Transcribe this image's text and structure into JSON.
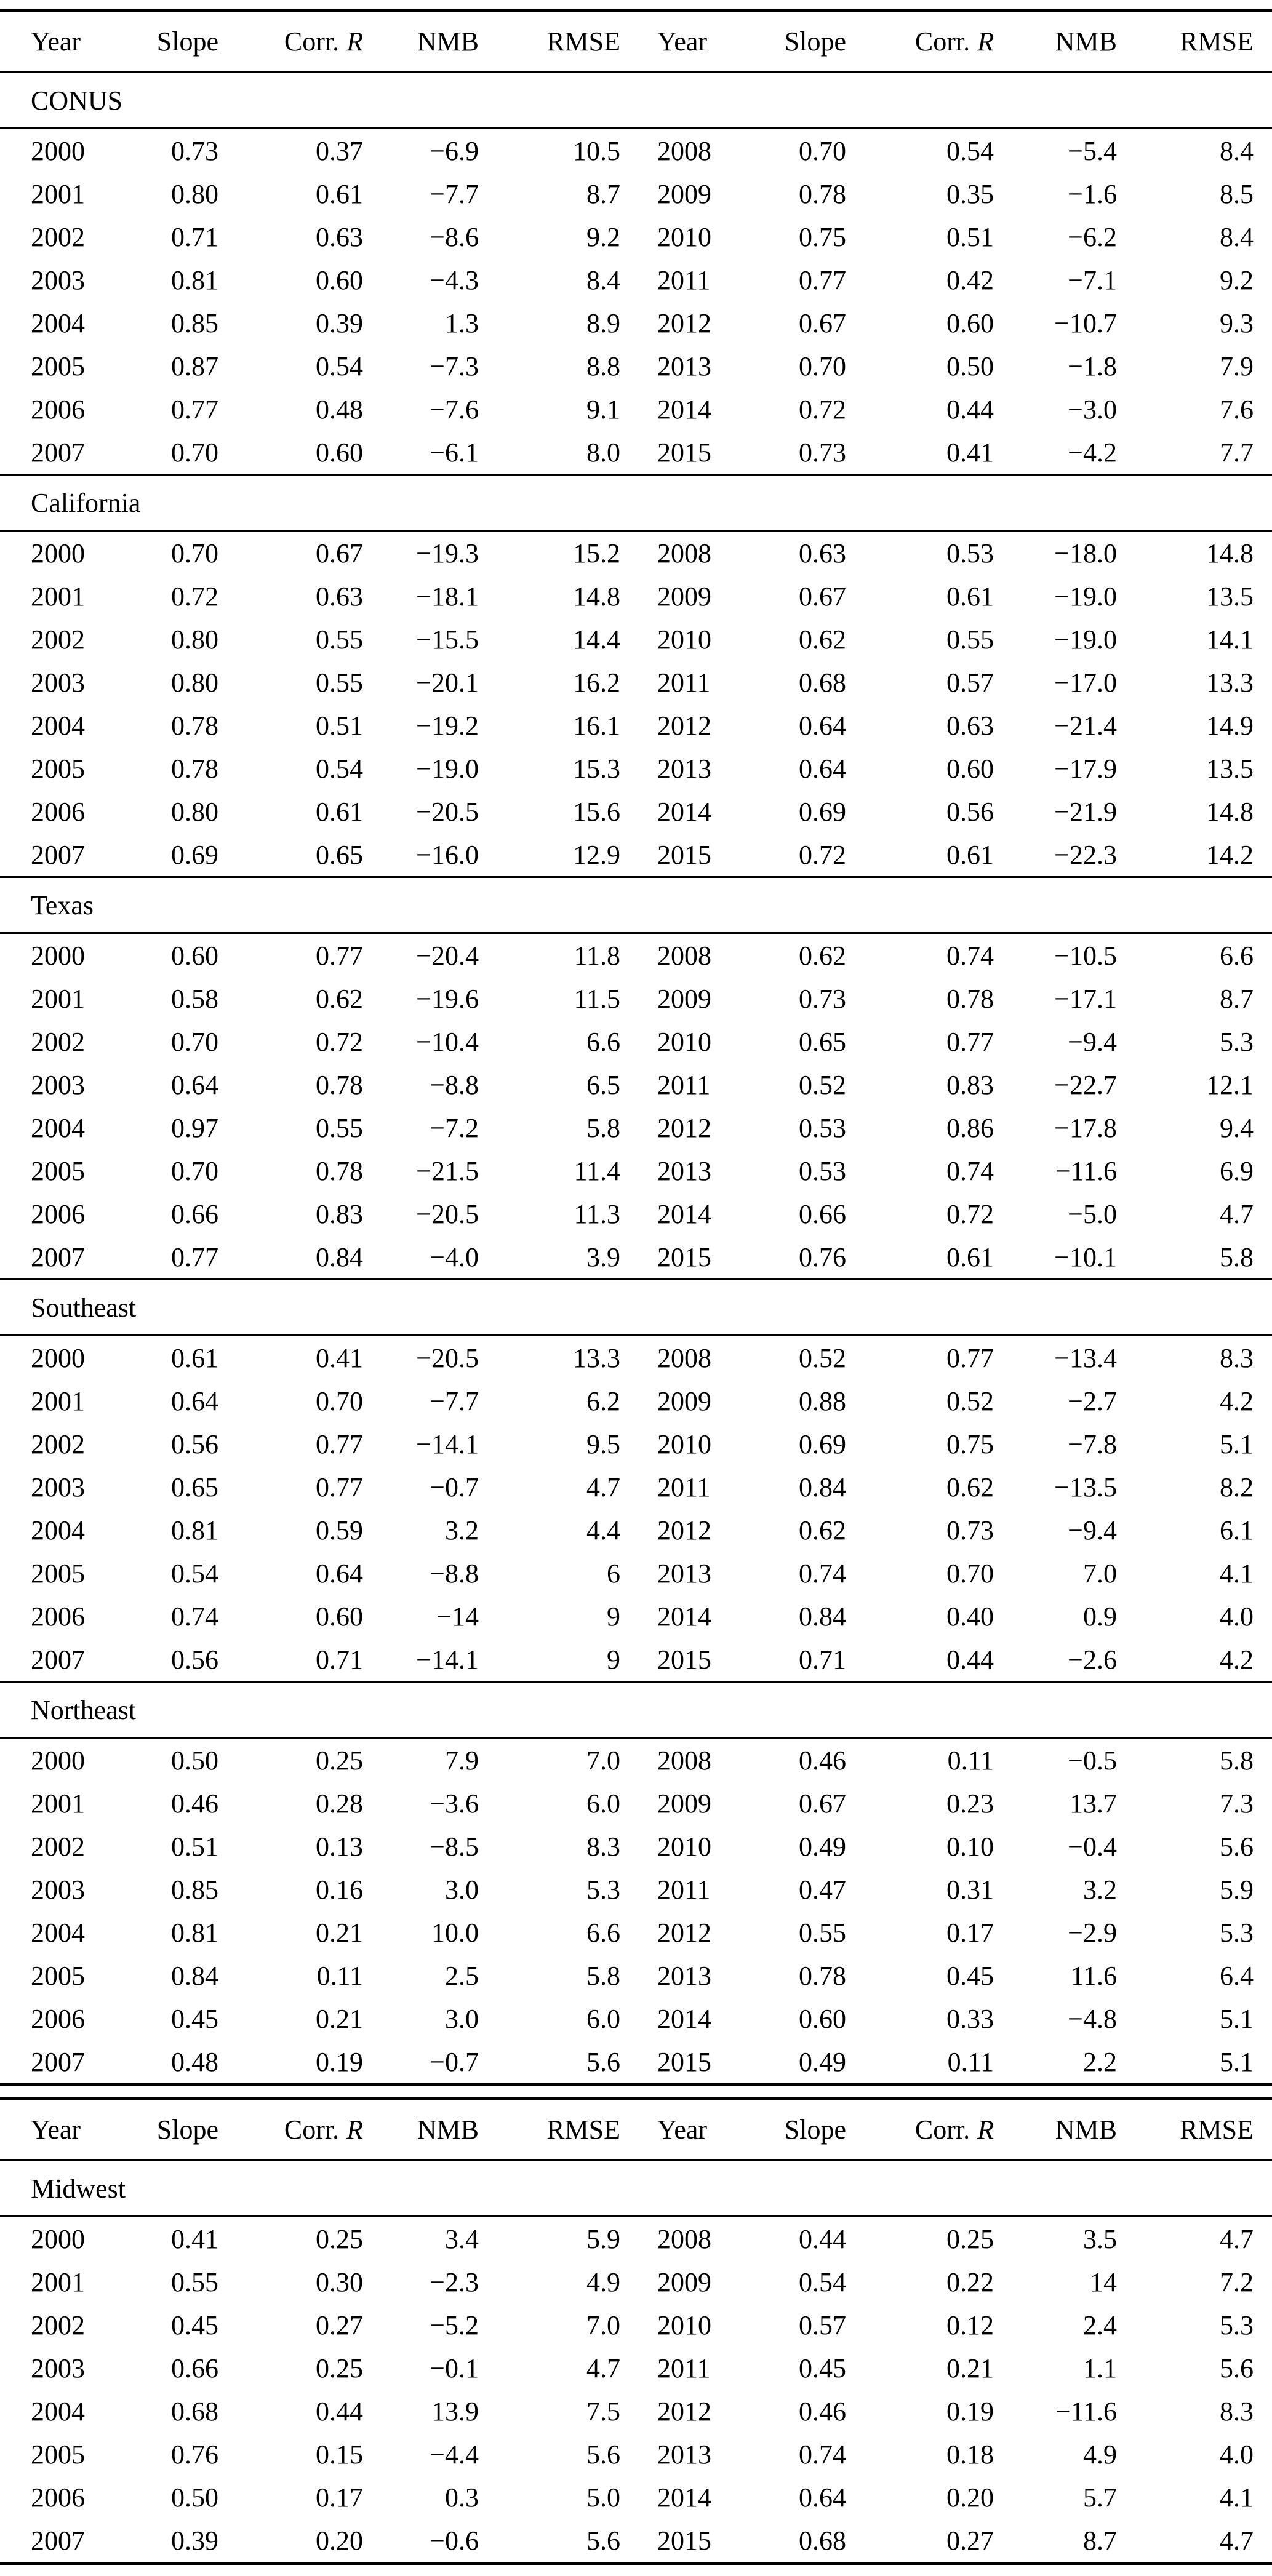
{
  "header": {
    "year": "Year",
    "slope": "Slope",
    "corr_prefix": "Corr.",
    "corr_symbol": "R",
    "nmb": "NMB",
    "rmse": "RMSE"
  },
  "columns": [
    "Year",
    "Slope",
    "Corr. R",
    "NMB",
    "RMSE",
    "Year",
    "Slope",
    "Corr. R",
    "NMB",
    "RMSE"
  ],
  "table1": {
    "sections": [
      {
        "name": "CONUS",
        "rows": [
          [
            "2000",
            "0.73",
            "0.37",
            "−6.9",
            "10.5",
            "2008",
            "0.70",
            "0.54",
            "−5.4",
            "8.4"
          ],
          [
            "2001",
            "0.80",
            "0.61",
            "−7.7",
            "8.7",
            "2009",
            "0.78",
            "0.35",
            "−1.6",
            "8.5"
          ],
          [
            "2002",
            "0.71",
            "0.63",
            "−8.6",
            "9.2",
            "2010",
            "0.75",
            "0.51",
            "−6.2",
            "8.4"
          ],
          [
            "2003",
            "0.81",
            "0.60",
            "−4.3",
            "8.4",
            "2011",
            "0.77",
            "0.42",
            "−7.1",
            "9.2"
          ],
          [
            "2004",
            "0.85",
            "0.39",
            "1.3",
            "8.9",
            "2012",
            "0.67",
            "0.60",
            "−10.7",
            "9.3"
          ],
          [
            "2005",
            "0.87",
            "0.54",
            "−7.3",
            "8.8",
            "2013",
            "0.70",
            "0.50",
            "−1.8",
            "7.9"
          ],
          [
            "2006",
            "0.77",
            "0.48",
            "−7.6",
            "9.1",
            "2014",
            "0.72",
            "0.44",
            "−3.0",
            "7.6"
          ],
          [
            "2007",
            "0.70",
            "0.60",
            "−6.1",
            "8.0",
            "2015",
            "0.73",
            "0.41",
            "−4.2",
            "7.7"
          ]
        ]
      },
      {
        "name": "California",
        "rows": [
          [
            "2000",
            "0.70",
            "0.67",
            "−19.3",
            "15.2",
            "2008",
            "0.63",
            "0.53",
            "−18.0",
            "14.8"
          ],
          [
            "2001",
            "0.72",
            "0.63",
            "−18.1",
            "14.8",
            "2009",
            "0.67",
            "0.61",
            "−19.0",
            "13.5"
          ],
          [
            "2002",
            "0.80",
            "0.55",
            "−15.5",
            "14.4",
            "2010",
            "0.62",
            "0.55",
            "−19.0",
            "14.1"
          ],
          [
            "2003",
            "0.80",
            "0.55",
            "−20.1",
            "16.2",
            "2011",
            "0.68",
            "0.57",
            "−17.0",
            "13.3"
          ],
          [
            "2004",
            "0.78",
            "0.51",
            "−19.2",
            "16.1",
            "2012",
            "0.64",
            "0.63",
            "−21.4",
            "14.9"
          ],
          [
            "2005",
            "0.78",
            "0.54",
            "−19.0",
            "15.3",
            "2013",
            "0.64",
            "0.60",
            "−17.9",
            "13.5"
          ],
          [
            "2006",
            "0.80",
            "0.61",
            "−20.5",
            "15.6",
            "2014",
            "0.69",
            "0.56",
            "−21.9",
            "14.8"
          ],
          [
            "2007",
            "0.69",
            "0.65",
            "−16.0",
            "12.9",
            "2015",
            "0.72",
            "0.61",
            "−22.3",
            "14.2"
          ]
        ]
      },
      {
        "name": "Texas",
        "rows": [
          [
            "2000",
            "0.60",
            "0.77",
            "−20.4",
            "11.8",
            "2008",
            "0.62",
            "0.74",
            "−10.5",
            "6.6"
          ],
          [
            "2001",
            "0.58",
            "0.62",
            "−19.6",
            "11.5",
            "2009",
            "0.73",
            "0.78",
            "−17.1",
            "8.7"
          ],
          [
            "2002",
            "0.70",
            "0.72",
            "−10.4",
            "6.6",
            "2010",
            "0.65",
            "0.77",
            "−9.4",
            "5.3"
          ],
          [
            "2003",
            "0.64",
            "0.78",
            "−8.8",
            "6.5",
            "2011",
            "0.52",
            "0.83",
            "−22.7",
            "12.1"
          ],
          [
            "2004",
            "0.97",
            "0.55",
            "−7.2",
            "5.8",
            "2012",
            "0.53",
            "0.86",
            "−17.8",
            "9.4"
          ],
          [
            "2005",
            "0.70",
            "0.78",
            "−21.5",
            "11.4",
            "2013",
            "0.53",
            "0.74",
            "−11.6",
            "6.9"
          ],
          [
            "2006",
            "0.66",
            "0.83",
            "−20.5",
            "11.3",
            "2014",
            "0.66",
            "0.72",
            "−5.0",
            "4.7"
          ],
          [
            "2007",
            "0.77",
            "0.84",
            "−4.0",
            "3.9",
            "2015",
            "0.76",
            "0.61",
            "−10.1",
            "5.8"
          ]
        ]
      },
      {
        "name": "Southeast",
        "rows": [
          [
            "2000",
            "0.61",
            "0.41",
            "−20.5",
            "13.3",
            "2008",
            "0.52",
            "0.77",
            "−13.4",
            "8.3"
          ],
          [
            "2001",
            "0.64",
            "0.70",
            "−7.7",
            "6.2",
            "2009",
            "0.88",
            "0.52",
            "−2.7",
            "4.2"
          ],
          [
            "2002",
            "0.56",
            "0.77",
            "−14.1",
            "9.5",
            "2010",
            "0.69",
            "0.75",
            "−7.8",
            "5.1"
          ],
          [
            "2003",
            "0.65",
            "0.77",
            "−0.7",
            "4.7",
            "2011",
            "0.84",
            "0.62",
            "−13.5",
            "8.2"
          ],
          [
            "2004",
            "0.81",
            "0.59",
            "3.2",
            "4.4",
            "2012",
            "0.62",
            "0.73",
            "−9.4",
            "6.1"
          ],
          [
            "2005",
            "0.54",
            "0.64",
            "−8.8",
            "6",
            "2013",
            "0.74",
            "0.70",
            "7.0",
            "4.1"
          ],
          [
            "2006",
            "0.74",
            "0.60",
            "−14",
            "9",
            "2014",
            "0.84",
            "0.40",
            "0.9",
            "4.0"
          ],
          [
            "2007",
            "0.56",
            "0.71",
            "−14.1",
            "9",
            "2015",
            "0.71",
            "0.44",
            "−2.6",
            "4.2"
          ]
        ]
      },
      {
        "name": "Northeast",
        "rows": [
          [
            "2000",
            "0.50",
            "0.25",
            "7.9",
            "7.0",
            "2008",
            "0.46",
            "0.11",
            "−0.5",
            "5.8"
          ],
          [
            "2001",
            "0.46",
            "0.28",
            "−3.6",
            "6.0",
            "2009",
            "0.67",
            "0.23",
            "13.7",
            "7.3"
          ],
          [
            "2002",
            "0.51",
            "0.13",
            "−8.5",
            "8.3",
            "2010",
            "0.49",
            "0.10",
            "−0.4",
            "5.6"
          ],
          [
            "2003",
            "0.85",
            "0.16",
            "3.0",
            "5.3",
            "2011",
            "0.47",
            "0.31",
            "3.2",
            "5.9"
          ],
          [
            "2004",
            "0.81",
            "0.21",
            "10.0",
            "6.6",
            "2012",
            "0.55",
            "0.17",
            "−2.9",
            "5.3"
          ],
          [
            "2005",
            "0.84",
            "0.11",
            "2.5",
            "5.8",
            "2013",
            "0.78",
            "0.45",
            "11.6",
            "6.4"
          ],
          [
            "2006",
            "0.45",
            "0.21",
            "3.0",
            "6.0",
            "2014",
            "0.60",
            "0.33",
            "−4.8",
            "5.1"
          ],
          [
            "2007",
            "0.48",
            "0.19",
            "−0.7",
            "5.6",
            "2015",
            "0.49",
            "0.11",
            "2.2",
            "5.1"
          ]
        ]
      }
    ]
  },
  "table2": {
    "sections": [
      {
        "name": "Midwest",
        "rows": [
          [
            "2000",
            "0.41",
            "0.25",
            "3.4",
            "5.9",
            "2008",
            "0.44",
            "0.25",
            "3.5",
            "4.7"
          ],
          [
            "2001",
            "0.55",
            "0.30",
            "−2.3",
            "4.9",
            "2009",
            "0.54",
            "0.22",
            "14",
            "7.2"
          ],
          [
            "2002",
            "0.45",
            "0.27",
            "−5.2",
            "7.0",
            "2010",
            "0.57",
            "0.12",
            "2.4",
            "5.3"
          ],
          [
            "2003",
            "0.66",
            "0.25",
            "−0.1",
            "4.7",
            "2011",
            "0.45",
            "0.21",
            "1.1",
            "5.6"
          ],
          [
            "2004",
            "0.68",
            "0.44",
            "13.9",
            "7.5",
            "2012",
            "0.46",
            "0.19",
            "−11.6",
            "8.3"
          ],
          [
            "2005",
            "0.76",
            "0.15",
            "−4.4",
            "5.6",
            "2013",
            "0.74",
            "0.18",
            "4.9",
            "4.0"
          ],
          [
            "2006",
            "0.50",
            "0.17",
            "0.3",
            "5.0",
            "2014",
            "0.64",
            "0.20",
            "5.7",
            "4.1"
          ],
          [
            "2007",
            "0.39",
            "0.20",
            "−0.6",
            "5.6",
            "2015",
            "0.68",
            "0.27",
            "8.7",
            "4.7"
          ]
        ]
      }
    ]
  }
}
